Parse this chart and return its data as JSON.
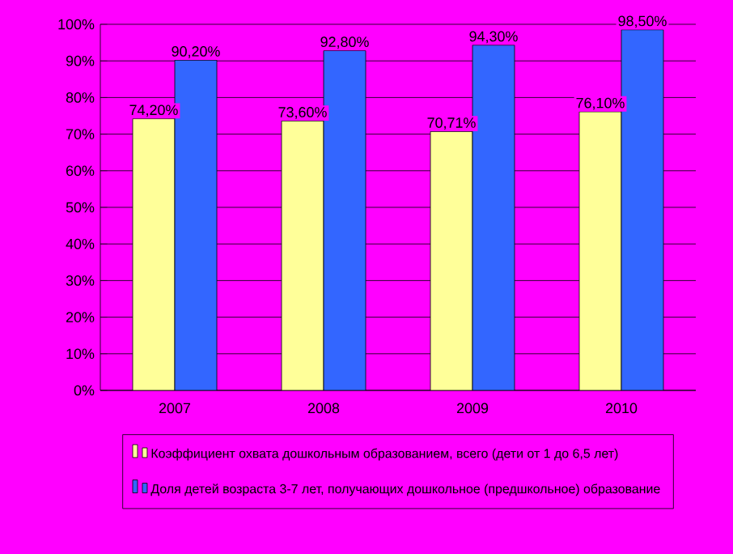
{
  "chart_data": {
    "type": "bar",
    "categories": [
      "2007",
      "2008",
      "2009",
      "2010"
    ],
    "series": [
      {
        "name": "Коэффициент охвата дошкольным образованием, всего (дети от 1 до 6,5 лет)",
        "color": "#ffff99",
        "values": [
          74.2,
          73.6,
          70.71,
          76.1
        ],
        "value_labels": [
          "74,20%",
          "73,60%",
          "70,71%",
          "76,10%"
        ]
      },
      {
        "name": "Доля детей возраста 3-7 лет, получающих дошкольное (предшкольное) образование",
        "color": "#3366ff",
        "values": [
          90.2,
          92.8,
          94.3,
          98.5
        ],
        "value_labels": [
          "90,20%",
          "92,80%",
          "94,30%",
          "98,50%"
        ]
      }
    ],
    "ylim": [
      0,
      100
    ],
    "yticks": [
      {
        "value": 0,
        "label": "0%"
      },
      {
        "value": 10,
        "label": "10%"
      },
      {
        "value": 20,
        "label": "20%"
      },
      {
        "value": 30,
        "label": "30%"
      },
      {
        "value": 40,
        "label": "40%"
      },
      {
        "value": 50,
        "label": "50%"
      },
      {
        "value": 60,
        "label": "60%"
      },
      {
        "value": 70,
        "label": "70%"
      },
      {
        "value": 80,
        "label": "80%"
      },
      {
        "value": 90,
        "label": "90%"
      },
      {
        "value": 100,
        "label": "100%"
      }
    ],
    "grid": "y",
    "legend": "bottom"
  }
}
